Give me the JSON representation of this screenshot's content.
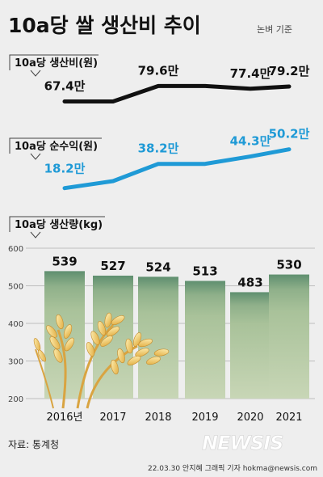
{
  "title": "10a당 쌀 생산비 추이",
  "subtitle": "논벼 기준",
  "source": "자료: 통계청",
  "credit": "22.03.30 안지혜 그래픽 기자 hokma@newsis.com",
  "watermark": "NEWSIS",
  "colors": {
    "background": "#eeeeee",
    "cost_line": "#111111",
    "income_line": "#1f9ad6",
    "bar_top": "#5f8f6f",
    "bar_body": "#a9c29a",
    "bar_bottom": "#c8d6b6"
  },
  "icons": [
    "rice-stalk-illustration",
    "newsis-logo-icon"
  ],
  "chart_data": [
    {
      "type": "line",
      "title": "10a당 생산비(원)",
      "categories": [
        "2016년",
        "2017",
        "2018",
        "2019",
        "2020",
        "2021"
      ],
      "series": [
        {
          "name": "10a당 생산비(원)",
          "values": [
            67.4,
            67.4,
            79.6,
            79.6,
            77.4,
            79.2
          ],
          "labels": [
            "67.4만",
            "",
            "79.6만",
            "",
            "77.4만",
            "79.2만"
          ]
        }
      ],
      "ylim": [
        55,
        90
      ]
    },
    {
      "type": "line",
      "title": "10a당 순수익(원)",
      "categories": [
        "2016년",
        "2017",
        "2018",
        "2019",
        "2020",
        "2021"
      ],
      "series": [
        {
          "name": "10a당 순수익(원)",
          "values": [
            18.2,
            24.0,
            38.2,
            38.2,
            44.3,
            50.2
          ],
          "labels": [
            "18.2만",
            "",
            "38.2만",
            "",
            "44.3만",
            "50.2만"
          ]
        }
      ],
      "ylim": [
        10,
        60
      ]
    },
    {
      "type": "bar",
      "title": "10a당 생산량(kg)",
      "categories": [
        "2016년",
        "2017",
        "2018",
        "2019",
        "2020",
        "2021"
      ],
      "values": [
        539,
        527,
        524,
        513,
        483,
        530
      ],
      "ylim": [
        200,
        600
      ],
      "yticks": [
        200,
        300,
        400,
        500,
        600
      ],
      "grid": true
    }
  ]
}
